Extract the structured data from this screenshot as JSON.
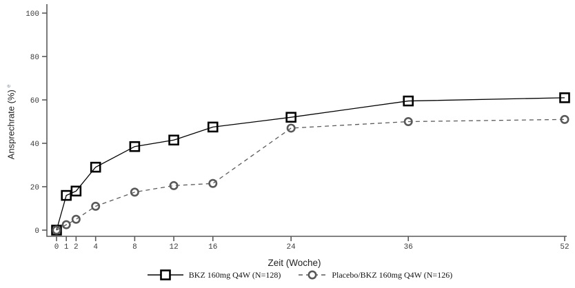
{
  "chart_data": {
    "type": "line",
    "title": "",
    "xlabel": "Zeit (Woche)",
    "ylabel": "Ansprechrate (%)",
    "ylabel_footnote": "e",
    "x": [
      0,
      1,
      2,
      4,
      8,
      12,
      16,
      24,
      36,
      52
    ],
    "x_ticks": [
      "0",
      "1",
      "2",
      "4",
      "8",
      "12",
      "16",
      "24",
      "36",
      "52"
    ],
    "y_ticks": [
      0,
      20,
      40,
      60,
      80,
      100
    ],
    "xlim": [
      0,
      52
    ],
    "ylim": [
      0,
      100
    ],
    "grid": false,
    "legend_position": "bottom-center",
    "axis_color": "#595959",
    "tick_label_color": "#3a3a3a",
    "series": [
      {
        "name": "BKZ 160mg Q4W (N=128)",
        "marker": "square",
        "line_style": "solid",
        "color": "#000000",
        "values": [
          0,
          16,
          18,
          29,
          38.5,
          41.5,
          47.5,
          52,
          59.5,
          61
        ]
      },
      {
        "name": "Placebo/BKZ 160mg Q4W (N=126)",
        "marker": "circle",
        "line_style": "dashed",
        "color": "#595959",
        "values": [
          0,
          2.5,
          5,
          11,
          17.5,
          20.5,
          21.5,
          47,
          50,
          51
        ]
      }
    ]
  }
}
